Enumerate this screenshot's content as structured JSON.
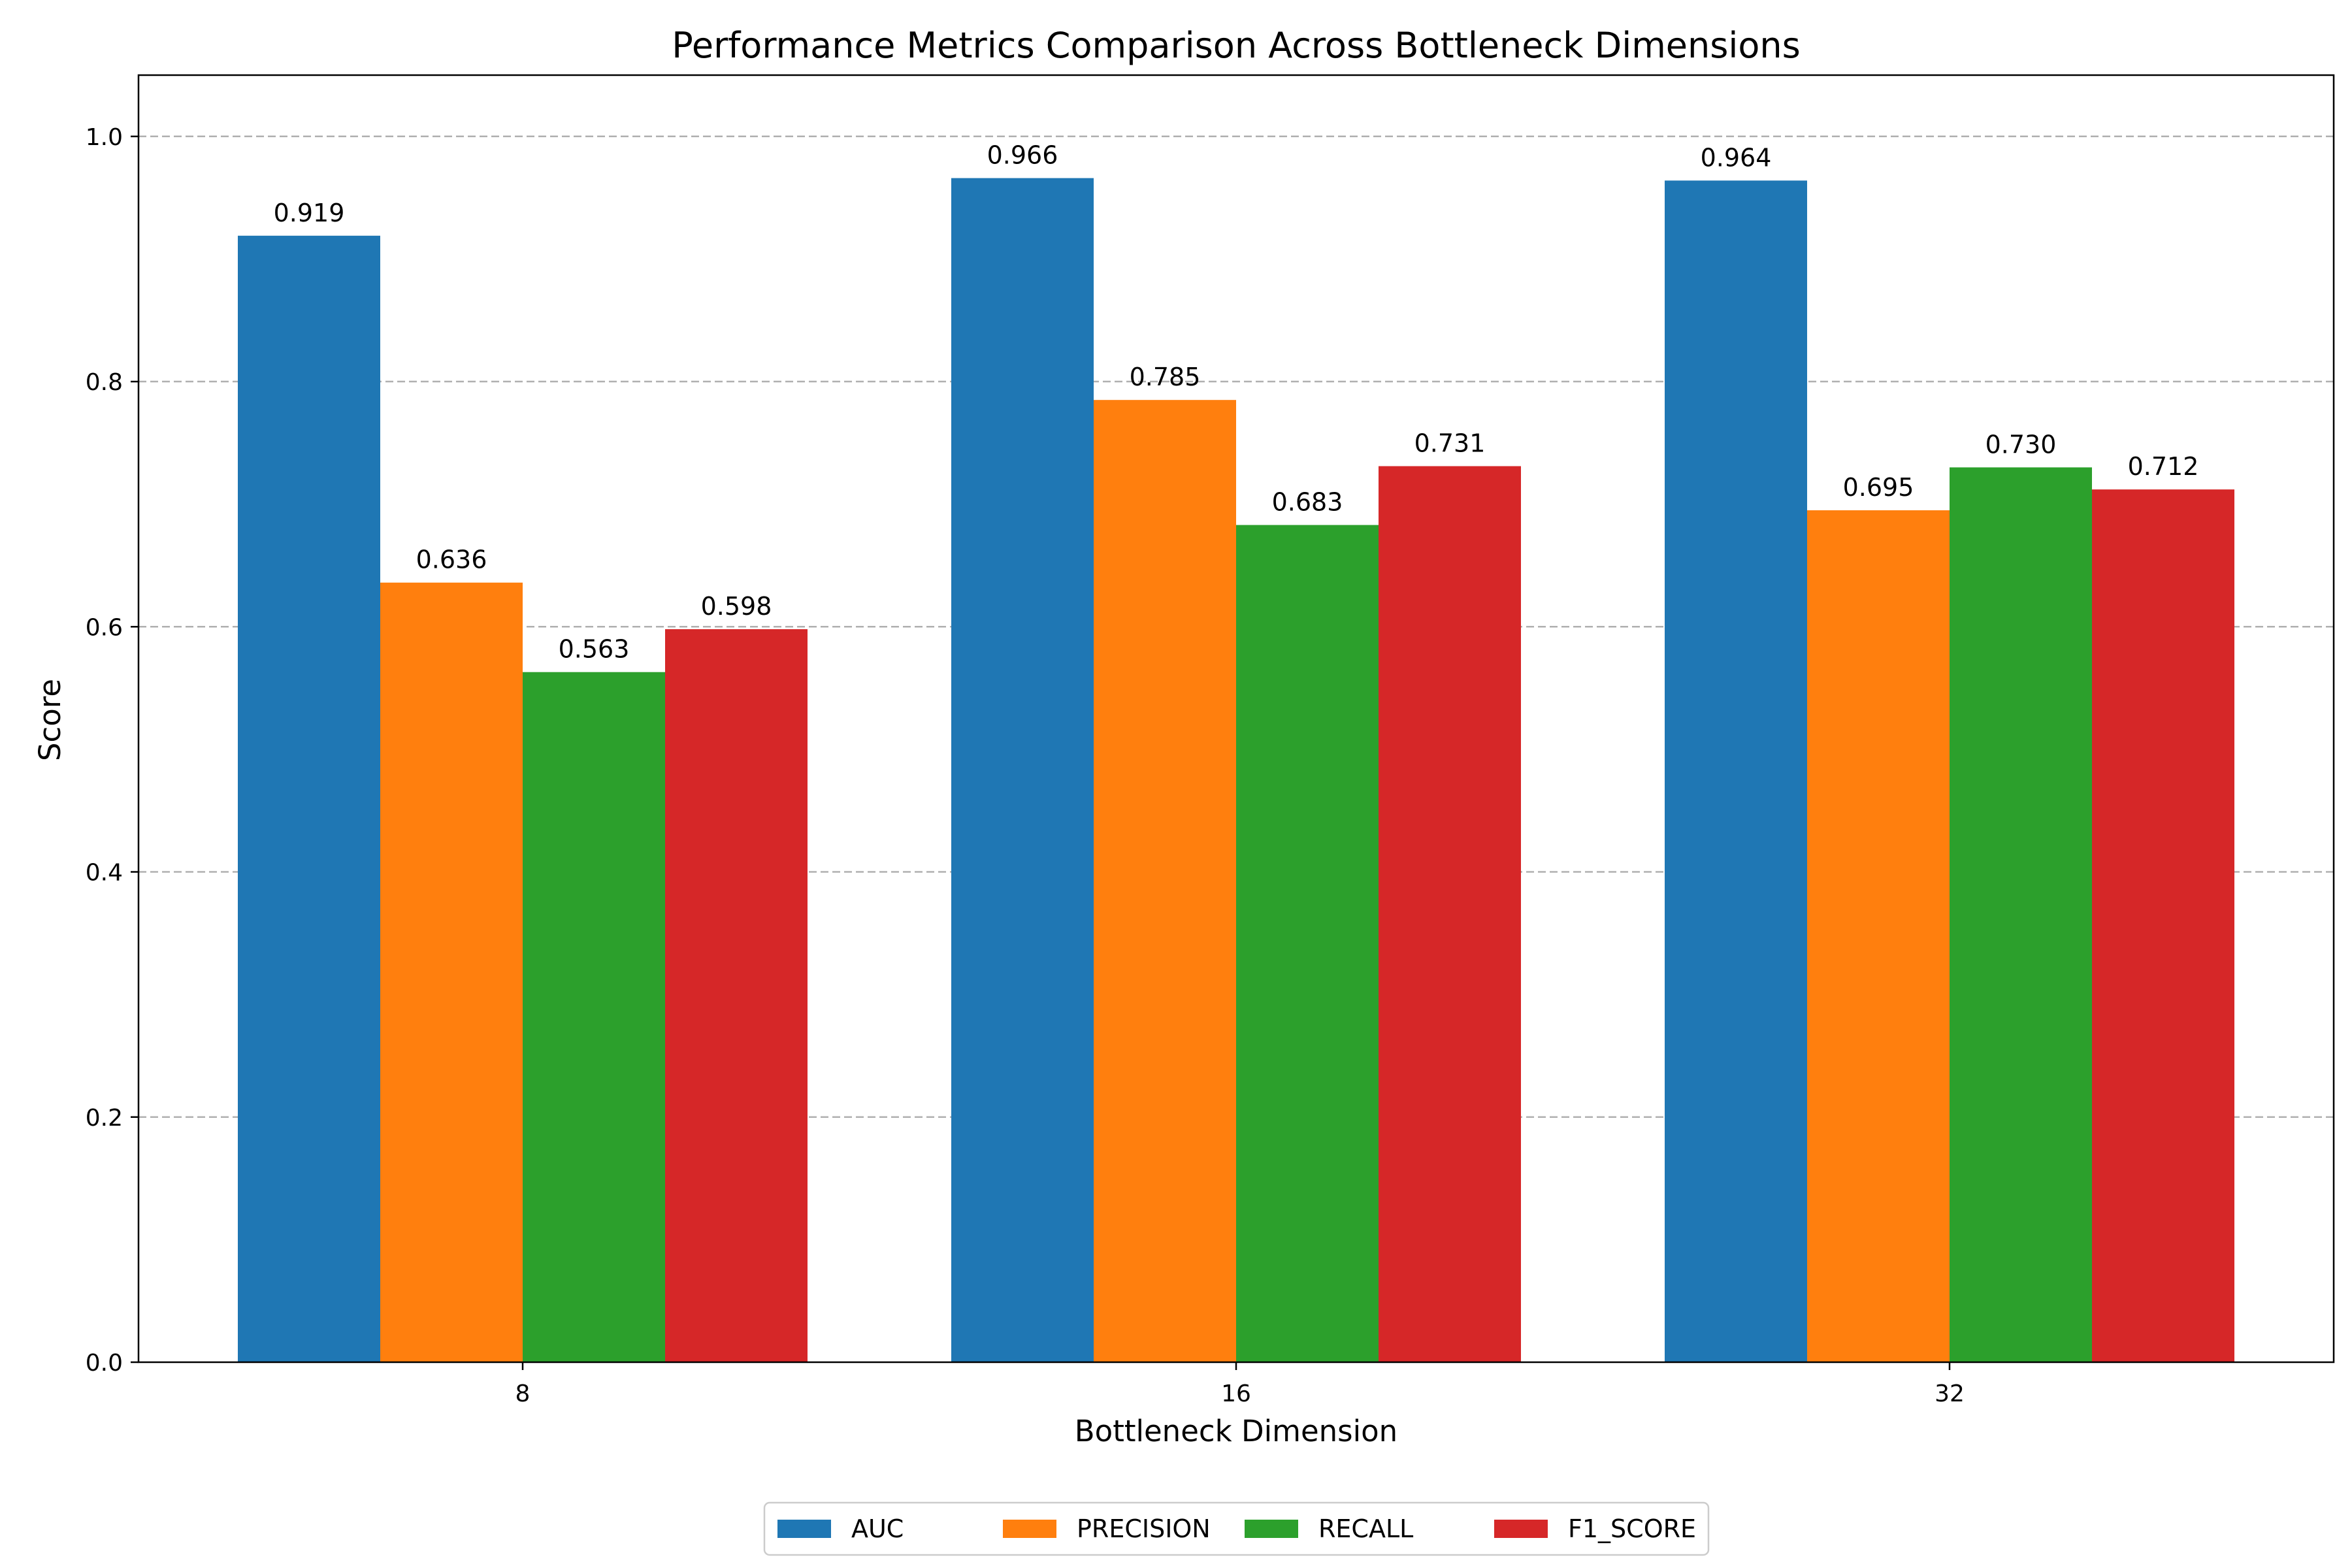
{
  "chart_data": {
    "type": "bar",
    "title": "Performance Metrics Comparison Across Bottleneck Dimensions",
    "xlabel": "Bottleneck Dimension",
    "ylabel": "Score",
    "categories": [
      "8",
      "16",
      "32"
    ],
    "ylim": [
      0,
      1.05
    ],
    "yticks": [
      "0.0",
      "0.2",
      "0.4",
      "0.6",
      "0.8",
      "1.0"
    ],
    "grid": "y-dashed",
    "legend_position": "bottom-center",
    "series": [
      {
        "name": "AUC",
        "color": "#1f77b4",
        "values": [
          0.919,
          0.966,
          0.964
        ],
        "labels": [
          "0.919",
          "0.966",
          "0.964"
        ]
      },
      {
        "name": "PRECISION",
        "color": "#ff7f0e",
        "values": [
          0.636,
          0.785,
          0.695
        ],
        "labels": [
          "0.636",
          "0.785",
          "0.695"
        ]
      },
      {
        "name": "RECALL",
        "color": "#2ca02c",
        "values": [
          0.563,
          0.683,
          0.73
        ],
        "labels": [
          "0.563",
          "0.683",
          "0.730"
        ]
      },
      {
        "name": "F1_SCORE",
        "color": "#d62728",
        "values": [
          0.598,
          0.731,
          0.712
        ],
        "labels": [
          "0.598",
          "0.731",
          "0.712"
        ]
      }
    ]
  }
}
